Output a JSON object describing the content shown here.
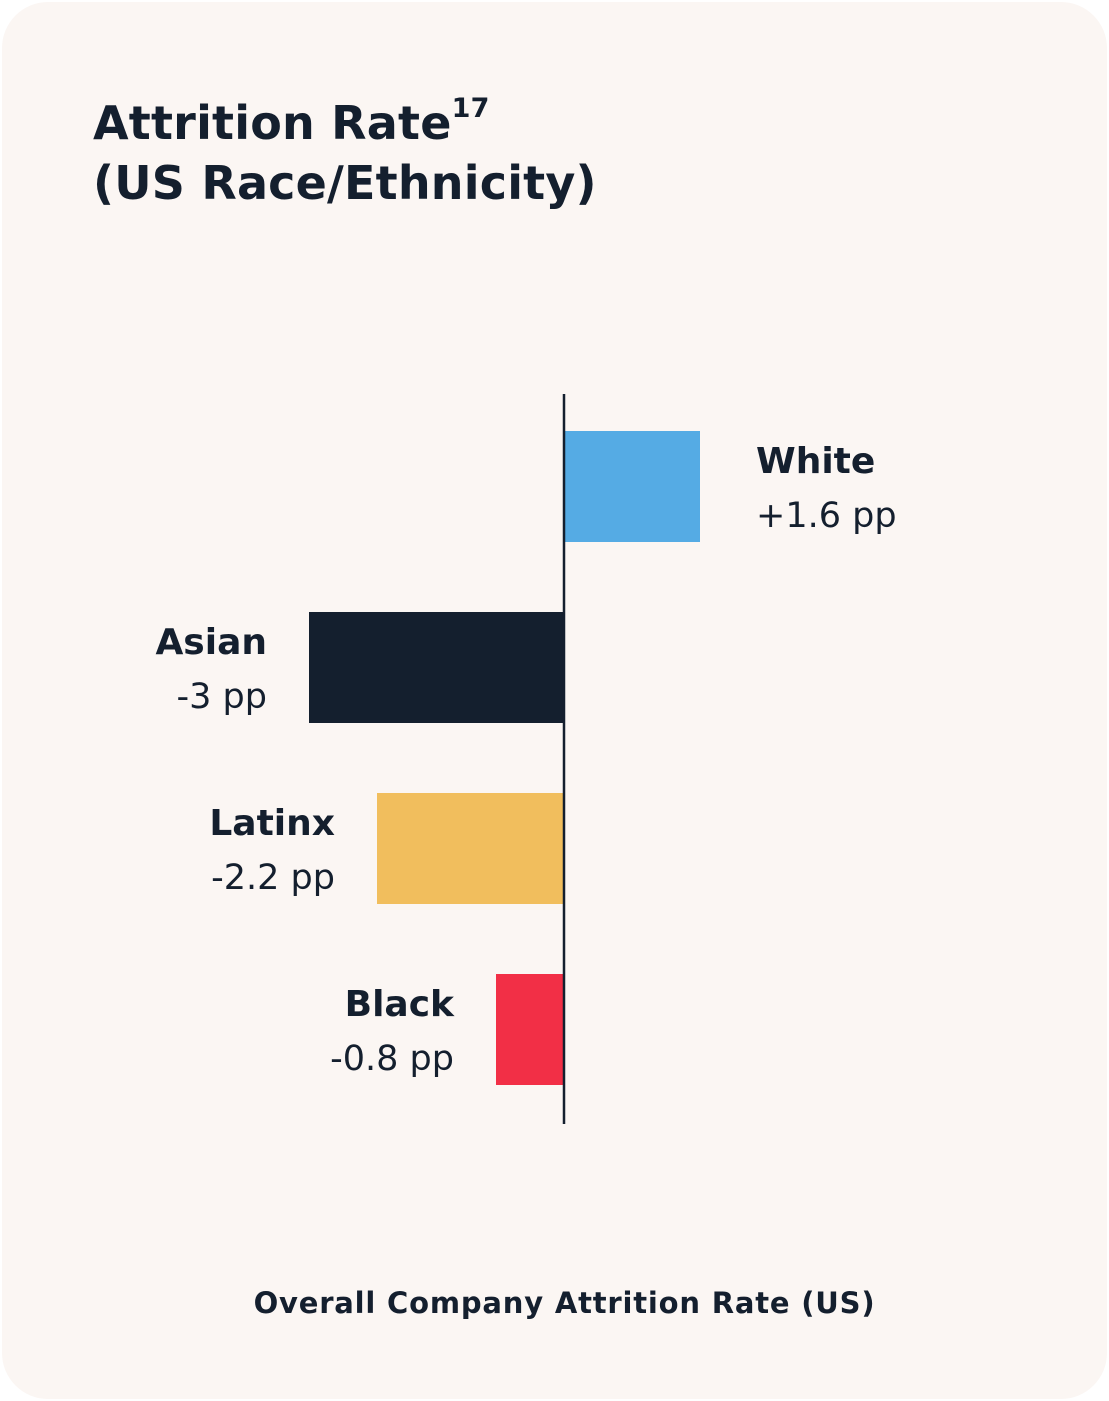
{
  "title": {
    "line1": "Attrition Rate",
    "superscript": "17",
    "line2": "(US Race/Ethnicity)"
  },
  "chart_data": {
    "type": "bar",
    "orientation": "horizontal",
    "unit": "pp",
    "categories": [
      "White",
      "Asian",
      "Latinx",
      "Black"
    ],
    "values": [
      1.6,
      -3,
      -2.2,
      -0.8
    ],
    "value_labels": [
      "+1.6 pp",
      "-3 pp",
      "-2.2 pp",
      "-0.8 pp"
    ],
    "colors": [
      "#55abe4",
      "#141f2e",
      "#f1be5d",
      "#f22f46"
    ],
    "baseline_label": "Overall Company Attrition Rate (US)",
    "baseline_value": 0,
    "grid": false,
    "legend": "none"
  },
  "colors": {
    "background": "#fbf6f3",
    "text": "#141f2e",
    "axis": "#141f2e"
  }
}
